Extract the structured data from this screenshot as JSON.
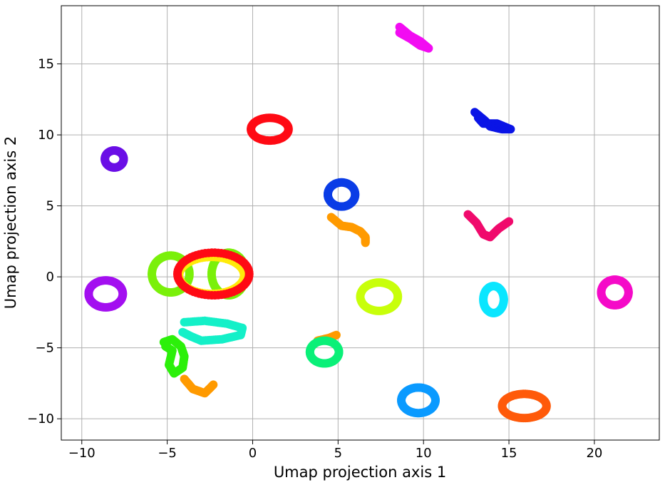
{
  "chart_data": {
    "type": "scatter",
    "xlabel": "Umap projection axis 1",
    "ylabel": "Umap projection axis 2",
    "xlim": [
      -11.2,
      23.8
    ],
    "ylim": [
      -11.5,
      19.1
    ],
    "xticks": [
      -10,
      -5,
      0,
      5,
      10,
      15,
      20
    ],
    "yticks": [
      -10,
      -5,
      0,
      5,
      10,
      15
    ],
    "tick_labels_x": [
      "−10",
      "−5",
      "0",
      "5",
      "10",
      "15",
      "20"
    ],
    "tick_labels_y": [
      "−10",
      "−5",
      "0",
      "5",
      "10",
      "15"
    ],
    "grid": true,
    "series": [
      {
        "color": "#f20cf2",
        "shape": "line",
        "points": [
          [
            8.6,
            17.6
          ],
          [
            9.2,
            17.0
          ],
          [
            9.8,
            16.6
          ],
          [
            10.3,
            16.1
          ],
          [
            9.8,
            16.3
          ],
          [
            9.2,
            16.8
          ],
          [
            8.6,
            17.2
          ],
          [
            8.7,
            17.4
          ]
        ]
      },
      {
        "color": "#0a14e6",
        "shape": "line",
        "points": [
          [
            13.0,
            11.6
          ],
          [
            13.6,
            11.0
          ],
          [
            13.9,
            10.6
          ],
          [
            14.6,
            10.4
          ],
          [
            15.1,
            10.4
          ],
          [
            14.3,
            10.8
          ],
          [
            13.5,
            10.8
          ],
          [
            13.2,
            11.2
          ]
        ]
      },
      {
        "color": "#ff0a14",
        "shape": "ring",
        "cx": 1.0,
        "cy": 10.4,
        "rx": 1.1,
        "ry": 0.8
      },
      {
        "color": "#6a0fe6",
        "shape": "ring",
        "cx": -8.1,
        "cy": 8.3,
        "rx": 0.55,
        "ry": 0.6
      },
      {
        "color": "#0a3ce6",
        "shape": "ring",
        "cx": 5.2,
        "cy": 5.8,
        "rx": 0.8,
        "ry": 0.85
      },
      {
        "color": "#ff9a00",
        "shape": "line",
        "points": [
          [
            4.6,
            4.2
          ],
          [
            5.2,
            3.6
          ],
          [
            5.8,
            3.5
          ],
          [
            6.3,
            3.2
          ],
          [
            6.6,
            2.8
          ],
          [
            6.6,
            2.4
          ]
        ]
      },
      {
        "color": "#f00a6c",
        "shape": "line",
        "points": [
          [
            12.6,
            4.4
          ],
          [
            13.1,
            3.8
          ],
          [
            13.5,
            3.0
          ],
          [
            13.9,
            2.8
          ],
          [
            14.4,
            3.4
          ],
          [
            15.0,
            3.9
          ]
        ]
      },
      {
        "color": "#7af00a",
        "shape": "ring",
        "cx": -4.8,
        "cy": 0.2,
        "rx": 1.1,
        "ry": 1.3
      },
      {
        "color": "#7af00a",
        "shape": "ring",
        "cx": -1.4,
        "cy": 0.2,
        "rx": 1.0,
        "ry": 1.5
      },
      {
        "color": "#ffeb0a",
        "shape": "ring",
        "cx": -2.4,
        "cy": 0.1,
        "rx": 1.9,
        "ry": 1.3
      },
      {
        "color": "#ff0a14",
        "shape": "ring",
        "cx": -2.3,
        "cy": 0.2,
        "rx": 2.1,
        "ry": 1.5
      },
      {
        "color": "#a30ff0",
        "shape": "ring",
        "cx": -8.6,
        "cy": -1.2,
        "rx": 1.0,
        "ry": 0.95
      },
      {
        "color": "#c8ff0a",
        "shape": "ring",
        "cx": 7.4,
        "cy": -1.4,
        "rx": 1.1,
        "ry": 1.0
      },
      {
        "color": "#0ae6ff",
        "shape": "ring",
        "cx": 14.1,
        "cy": -1.6,
        "rx": 0.6,
        "ry": 0.95
      },
      {
        "color": "#f50ac8",
        "shape": "ring",
        "cx": 21.2,
        "cy": -1.1,
        "rx": 0.8,
        "ry": 0.9
      },
      {
        "color": "#14f0c8",
        "shape": "line",
        "points": [
          [
            -4.0,
            -3.2
          ],
          [
            -2.8,
            -3.1
          ],
          [
            -1.5,
            -3.3
          ],
          [
            -0.6,
            -3.6
          ],
          [
            -0.7,
            -4.1
          ],
          [
            -1.8,
            -4.4
          ],
          [
            -3.0,
            -4.5
          ],
          [
            -3.6,
            -4.2
          ],
          [
            -4.1,
            -3.9
          ]
        ]
      },
      {
        "color": "#2cf00a",
        "shape": "line",
        "points": [
          [
            -5.2,
            -4.6
          ],
          [
            -4.7,
            -4.4
          ],
          [
            -4.2,
            -4.9
          ],
          [
            -4.0,
            -5.6
          ],
          [
            -4.1,
            -6.4
          ],
          [
            -4.6,
            -6.8
          ],
          [
            -4.9,
            -6.2
          ],
          [
            -4.7,
            -5.2
          ],
          [
            -5.1,
            -4.9
          ]
        ]
      },
      {
        "color": "#ff9a00",
        "shape": "line",
        "points": [
          [
            -4.0,
            -7.2
          ],
          [
            -3.5,
            -7.9
          ],
          [
            -2.8,
            -8.2
          ],
          [
            -2.3,
            -7.6
          ]
        ]
      },
      {
        "color": "#ff9a00",
        "shape": "line",
        "points": [
          [
            3.8,
            -4.5
          ],
          [
            4.5,
            -4.3
          ],
          [
            4.9,
            -4.1
          ]
        ]
      },
      {
        "color": "#0af078",
        "shape": "ring",
        "cx": 4.2,
        "cy": -5.3,
        "rx": 0.85,
        "ry": 0.8
      },
      {
        "color": "#0a9aff",
        "shape": "ring",
        "cx": 9.7,
        "cy": -8.7,
        "rx": 1.0,
        "ry": 0.9
      },
      {
        "color": "#ff5a0a",
        "shape": "ring",
        "cx": 15.9,
        "cy": -9.1,
        "rx": 1.3,
        "ry": 0.85
      }
    ]
  }
}
